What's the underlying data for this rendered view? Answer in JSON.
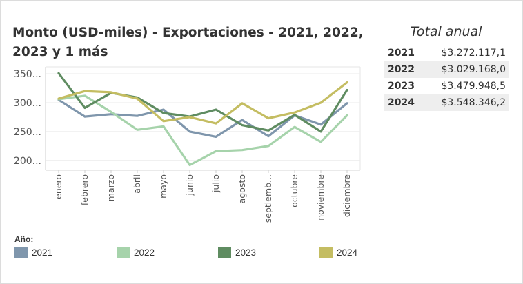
{
  "chart_data": {
    "type": "line",
    "title": "Monto (USD-miles) - Exportaciones - 2021, 2022, 2023 y 1 más",
    "categories": [
      "enero",
      "febrero",
      "marzo",
      "abril",
      "mayo",
      "junio",
      "julio",
      "agosto",
      "septiemb...",
      "octubre",
      "noviembre",
      "diciembre"
    ],
    "y_ticks": [
      {
        "value": 200,
        "label": "200..."
      },
      {
        "value": 250,
        "label": "250..."
      },
      {
        "value": 300,
        "label": "300..."
      },
      {
        "value": 350,
        "label": "350..."
      }
    ],
    "ylim": [
      183,
      362
    ],
    "grid": true,
    "series": [
      {
        "name": "2021",
        "color": "#7f96ac",
        "values": [
          305,
          276,
          280,
          277,
          288,
          250,
          241,
          270,
          242,
          278,
          262,
          299
        ]
      },
      {
        "name": "2022",
        "color": "#a6d3ab",
        "values": [
          306,
          312,
          284,
          253,
          259,
          192,
          216,
          218,
          225,
          258,
          232,
          278
        ]
      },
      {
        "name": "2023",
        "color": "#5f8c61",
        "values": [
          351,
          291,
          317,
          309,
          282,
          276,
          288,
          261,
          252,
          279,
          250,
          322
        ]
      },
      {
        "name": "2024",
        "color": "#c4bd62",
        "values": [
          307,
          320,
          318,
          307,
          268,
          275,
          264,
          299,
          273,
          283,
          300,
          335
        ]
      }
    ],
    "legend": {
      "title": "Año:",
      "position": "bottom"
    }
  },
  "totals": {
    "title": "Total anual",
    "rows": [
      {
        "year": "2021",
        "value": "$3.272.117,1"
      },
      {
        "year": "2022",
        "value": "$3.029.168,0"
      },
      {
        "year": "2023",
        "value": "$3.479.948,5"
      },
      {
        "year": "2024",
        "value": "$3.548.346,2"
      }
    ]
  }
}
